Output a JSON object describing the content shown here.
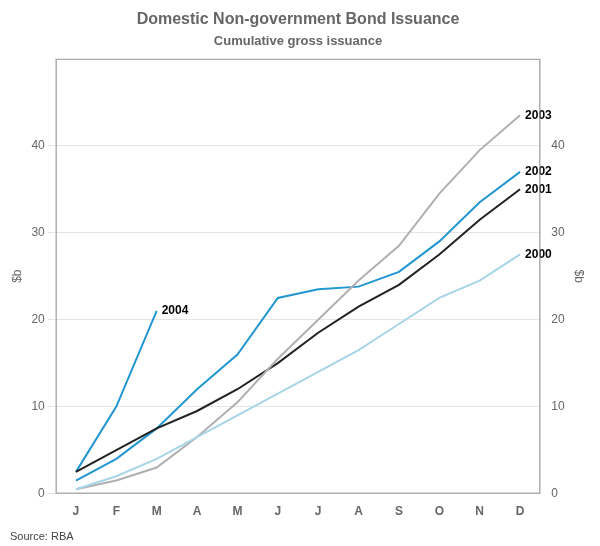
{
  "chart_data": {
    "type": "line",
    "title": "Domestic Non-government Bond Issuance",
    "subtitle": "Cumulative gross issuance",
    "source": "Source: RBA",
    "y_label": "$b",
    "y2_label": "$b",
    "categories": [
      "J",
      "F",
      "M",
      "A",
      "M",
      "J",
      "J",
      "A",
      "S",
      "O",
      "N",
      "D"
    ],
    "series": [
      {
        "name": "2000",
        "color": "#a8d4e8",
        "values": [
          0.5,
          2.0,
          4.0,
          6.5,
          9.0,
          11.5,
          14.0,
          16.5,
          19.5,
          22.5,
          24.5,
          27.5
        ]
      },
      {
        "name": "2003",
        "color": "#b0b0b0",
        "values": [
          0.5,
          1.5,
          3.0,
          6.5,
          10.5,
          15.5,
          20.0,
          24.5,
          28.5,
          34.5,
          39.5,
          43.5
        ]
      },
      {
        "name": "2001",
        "color": "#222222",
        "values": [
          2.5,
          5.0,
          7.5,
          9.5,
          12.0,
          15.0,
          18.5,
          21.5,
          24.0,
          27.5,
          31.5,
          35.0
        ]
      },
      {
        "name": "2002",
        "color": "#2196d0",
        "values": [
          1.5,
          4.0,
          7.5,
          12.0,
          16.0,
          22.5,
          23.5,
          23.8,
          25.5,
          29.0,
          33.5,
          37.0
        ]
      },
      {
        "name": "2004",
        "color": "#2196d0",
        "values": [
          2.5,
          10.0,
          21.0,
          null,
          null,
          null,
          null,
          null,
          null,
          null,
          null,
          null
        ]
      }
    ],
    "ylim": [
      0,
      50
    ],
    "yticks": [
      0,
      10,
      20,
      30,
      40
    ],
    "y2lim": [
      0,
      50
    ],
    "y2ticks": [
      0,
      10,
      20,
      30,
      40
    ],
    "grid": true
  }
}
